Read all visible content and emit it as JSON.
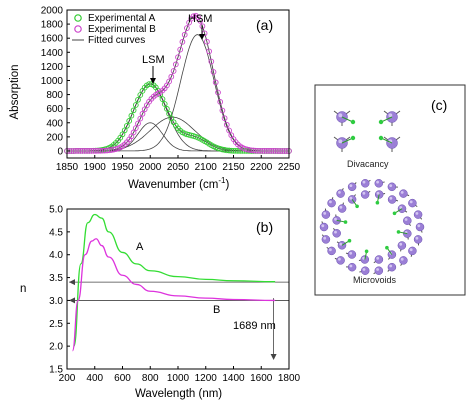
{
  "chart_data": [
    {
      "type": "line",
      "panel_label": "(a)",
      "xlabel": "Wavenumber (cm",
      "xlabel_sup": "-1",
      "xlabel_end": ")",
      "ylabel": "Absorption",
      "xlim": [
        1850,
        2250
      ],
      "ylim": [
        -100,
        2000
      ],
      "xticks": [
        1850,
        1900,
        1950,
        2000,
        2050,
        2100,
        2150,
        2200,
        2250
      ],
      "yticks": [
        0,
        200,
        400,
        600,
        800,
        1000,
        1200,
        1400,
        1600,
        1800,
        2000
      ],
      "legend": [
        "Experimental A",
        "Experimental B",
        "Fitted curves"
      ],
      "annotations": [
        "LSM",
        "HSM"
      ],
      "series": [
        {
          "name": "Experimental A",
          "color": "#33cc33",
          "marker": "circle",
          "peaks": [
            [
              2000,
              950,
              30
            ],
            [
              2080,
              180,
              24
            ]
          ]
        },
        {
          "name": "Experimental B",
          "color": "#cc44cc",
          "marker": "circle",
          "peaks": [
            [
              2000,
              400,
              22
            ],
            [
              2040,
              480,
              40
            ],
            [
              2085,
              1650,
              30
            ]
          ]
        },
        {
          "name": "Fitted curves",
          "color": "#444444",
          "components": [
            [
              2000,
              950,
              30
            ],
            [
              2000,
              400,
              22
            ],
            [
              2040,
              480,
              40
            ],
            [
              2085,
              1650,
              30
            ]
          ]
        }
      ]
    },
    {
      "type": "line",
      "panel_label": "(b)",
      "xlabel": "Wavelength (nm)",
      "ylabel": "n",
      "xlim": [
        200,
        1800
      ],
      "ylim": [
        1.5,
        5.0
      ],
      "xticks": [
        200,
        400,
        600,
        800,
        1000,
        1200,
        1400,
        1600,
        1800
      ],
      "yticks": [
        1.5,
        2.0,
        2.5,
        3.0,
        3.5,
        4.0,
        4.5,
        5.0
      ],
      "annotations": [
        "A",
        "B",
        "1689 nm"
      ],
      "marker_x": 1689,
      "series": [
        {
          "name": "A",
          "color": "#33dd33",
          "x": [
            250,
            300,
            350,
            400,
            450,
            500,
            600,
            700,
            800,
            1000,
            1200,
            1400,
            1700
          ],
          "y": [
            2.0,
            3.8,
            4.7,
            4.88,
            4.8,
            4.5,
            4.05,
            3.8,
            3.65,
            3.52,
            3.46,
            3.43,
            3.41
          ]
        },
        {
          "name": "B",
          "color": "#dd33dd",
          "x": [
            240,
            280,
            330,
            380,
            410,
            450,
            500,
            600,
            700,
            800,
            1000,
            1200,
            1400,
            1700
          ],
          "y": [
            1.9,
            3.0,
            4.0,
            4.3,
            4.35,
            4.2,
            3.95,
            3.55,
            3.35,
            3.2,
            3.1,
            3.05,
            3.02,
            3.0
          ]
        }
      ],
      "reference_lines": [
        3.4,
        3.0
      ]
    }
  ],
  "panel_c": {
    "label": "(c)",
    "top_caption": "Divacancy",
    "bottom_caption": "Microvoids"
  }
}
